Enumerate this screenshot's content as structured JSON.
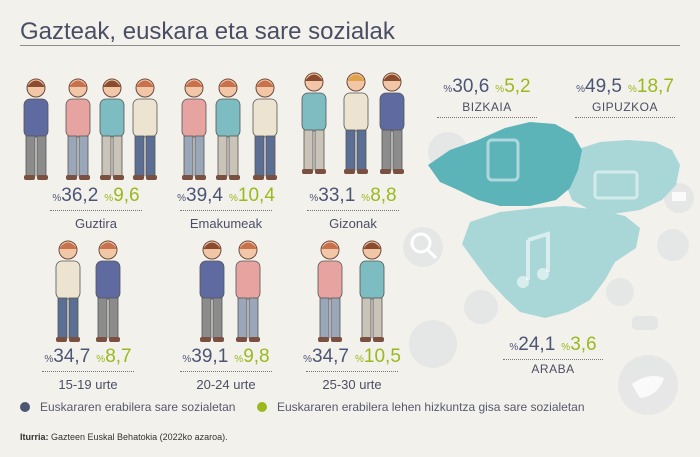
{
  "title": "Gazteak, euskara eta sare sozialak",
  "percent_sign": "%",
  "colors": {
    "series1": "#4d5575",
    "series2": "#9ab91d",
    "map_dark": "#5cb3b8",
    "map_light": "#a9d7d7"
  },
  "chart_data": {
    "type": "table",
    "series": [
      {
        "name": "Euskararen erabilera sare sozialetan",
        "key": "v1"
      },
      {
        "name": "Euskararen erabilera lehen hizkuntza gisa sare sozialetan",
        "key": "v2"
      }
    ],
    "groups": [
      {
        "label": "Guztira",
        "v1": "36,2",
        "v2": "9,6",
        "people": [
          "m",
          "f",
          "m",
          "f"
        ]
      },
      {
        "label": "Emakumeak",
        "v1": "39,4",
        "v2": "10,4",
        "people": [
          "f",
          "f",
          "f"
        ]
      },
      {
        "label": "Gizonak",
        "v1": "33,1",
        "v2": "8,8",
        "people": [
          "m",
          "m",
          "m"
        ]
      },
      {
        "label": "15-19 urte",
        "v1": "34,7",
        "v2": "8,7",
        "people": [
          "f",
          "f"
        ]
      },
      {
        "label": "20-24 urte",
        "v1": "39,1",
        "v2": "9,8",
        "people": [
          "m",
          "f"
        ]
      },
      {
        "label": "25-30 urte",
        "v1": "34,7",
        "v2": "10,5",
        "people": [
          "f",
          "m"
        ]
      }
    ],
    "regions": [
      {
        "label": "BIZKAIA",
        "v1": "30,6",
        "v2": "5,2"
      },
      {
        "label": "GIPUZKOA",
        "v1": "49,5",
        "v2": "18,7"
      },
      {
        "label": "ARABA",
        "v1": "24,1",
        "v2": "3,6"
      }
    ]
  },
  "legend": [
    {
      "label": "Euskararen erabilera sare sozialetan",
      "color": "#4d5575"
    },
    {
      "label": "Euskararen erabilera lehen hizkuntza gisa sare sozialetan",
      "color": "#9ab91d"
    }
  ],
  "source": {
    "label": "Iturria:",
    "text": " Gazteen Euskal Behatokia (2022ko azaroa)."
  }
}
